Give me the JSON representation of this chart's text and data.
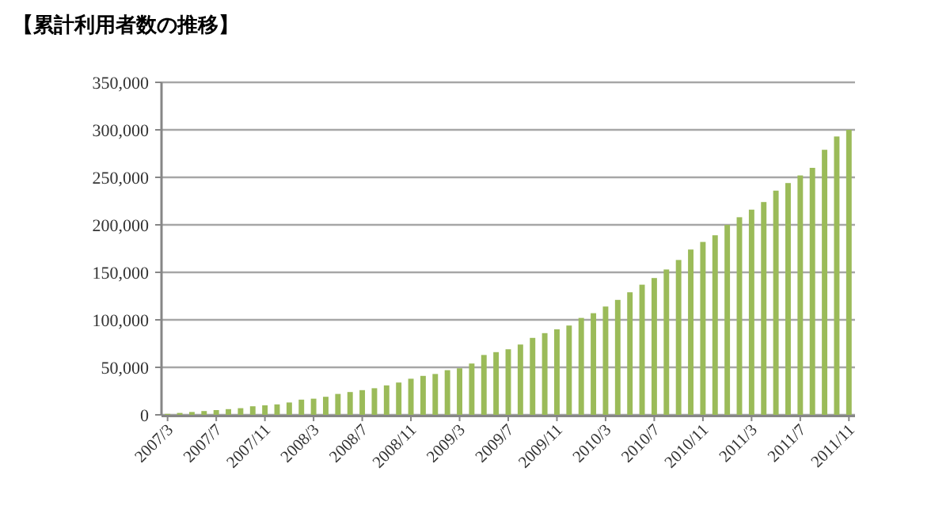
{
  "chart_data": {
    "type": "bar",
    "title": "【累計利用者数の推移】",
    "categories": [
      "2007/3",
      null,
      null,
      null,
      "2007/7",
      null,
      null,
      null,
      "2007/11",
      null,
      null,
      null,
      "2008/3",
      null,
      null,
      null,
      "2008/7",
      null,
      null,
      null,
      "2008/11",
      null,
      null,
      null,
      "2009/3",
      null,
      null,
      null,
      "2009/7",
      null,
      null,
      null,
      "2009/11",
      null,
      null,
      null,
      "2010/3",
      null,
      null,
      null,
      "2010/7",
      null,
      null,
      null,
      "2010/11",
      null,
      null,
      null,
      "2011/3",
      null,
      null,
      null,
      "2011/7",
      null,
      null,
      null,
      "2011/11"
    ],
    "values": [
      1000,
      2000,
      3000,
      4000,
      5000,
      6000,
      7000,
      9000,
      10000,
      11000,
      13000,
      16000,
      17000,
      19000,
      22000,
      24000,
      26000,
      28000,
      31000,
      34000,
      38000,
      41000,
      43000,
      47000,
      49000,
      54000,
      63000,
      66000,
      69000,
      74000,
      81000,
      86000,
      90000,
      94000,
      102000,
      107000,
      114000,
      121000,
      129000,
      137000,
      144000,
      153000,
      163000,
      174000,
      182000,
      189000,
      200000,
      208000,
      216000,
      224000,
      236000,
      244000,
      252000,
      260000,
      279000,
      293000,
      300000
    ],
    "color": "#9bbb59",
    "ylim": [
      0,
      350000
    ],
    "yticks": [
      0,
      {
        "value": 50000,
        "label": "50,000"
      },
      {
        "value": 100000,
        "label": "100,000"
      },
      {
        "value": 150000,
        "label": "150,000"
      },
      {
        "value": 200000,
        "label": "200,000"
      },
      {
        "value": 250000,
        "label": "250,000"
      },
      {
        "value": 300000,
        "label": "300,000"
      },
      {
        "value": 350000,
        "label": "350,000"
      }
    ],
    "grid": "y"
  }
}
